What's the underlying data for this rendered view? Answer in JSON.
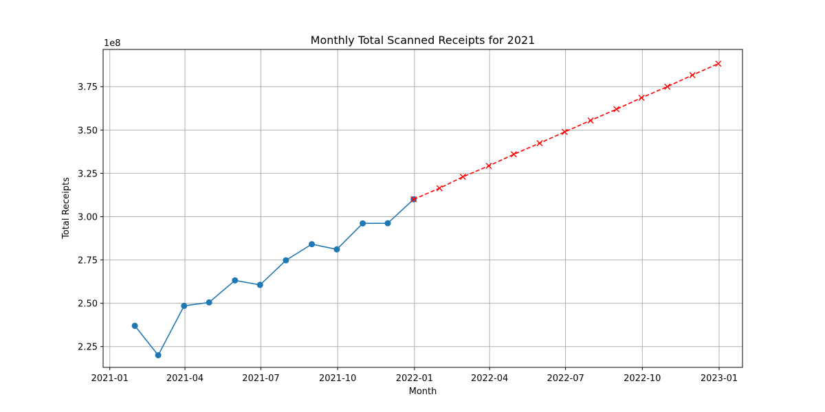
{
  "chart_data": {
    "type": "line",
    "title": "Monthly Total Scanned Receipts for 2021",
    "xlabel": "Month",
    "ylabel": "Total Receipts",
    "y_offset_label": "1e8",
    "y_scale": 100000000,
    "xlim": [
      "2020-12-24",
      "2023-01-29"
    ],
    "ylim": [
      2.13,
      3.965
    ],
    "grid": true,
    "x_ticks": [
      "2021-01",
      "2021-04",
      "2021-07",
      "2021-10",
      "2022-01",
      "2022-04",
      "2022-07",
      "2022-10",
      "2023-01"
    ],
    "y_ticks": [
      2.25,
      2.5,
      2.75,
      3.0,
      3.25,
      3.5,
      3.75
    ],
    "y_tick_labels": [
      "2.25",
      "2.50",
      "2.75",
      "3.00",
      "3.25",
      "3.50",
      "3.75"
    ],
    "series": [
      {
        "color": "#1f77b4",
        "line_style": "solid",
        "marker": "circle",
        "x": [
          "2021-01-31",
          "2021-02-28",
          "2021-03-31",
          "2021-04-30",
          "2021-05-31",
          "2021-06-30",
          "2021-07-31",
          "2021-08-31",
          "2021-09-30",
          "2021-10-31",
          "2021-11-30",
          "2021-12-31"
        ],
        "values": [
          2.37,
          2.2,
          2.485,
          2.505,
          2.632,
          2.606,
          2.748,
          2.841,
          2.811,
          2.961,
          2.962,
          3.1
        ]
      },
      {
        "color": "#ff0000",
        "line_style": "dashed",
        "marker": "x",
        "x": [
          "2021-12-31",
          "2022-01-31",
          "2022-02-28",
          "2022-03-31",
          "2022-04-30",
          "2022-05-31",
          "2022-06-30",
          "2022-07-31",
          "2022-08-31",
          "2022-09-30",
          "2022-10-31",
          "2022-11-30",
          "2022-12-31"
        ],
        "values": [
          3.1,
          3.164,
          3.23,
          3.293,
          3.36,
          3.424,
          3.489,
          3.555,
          3.62,
          3.686,
          3.75,
          3.817,
          3.883
        ]
      }
    ]
  }
}
